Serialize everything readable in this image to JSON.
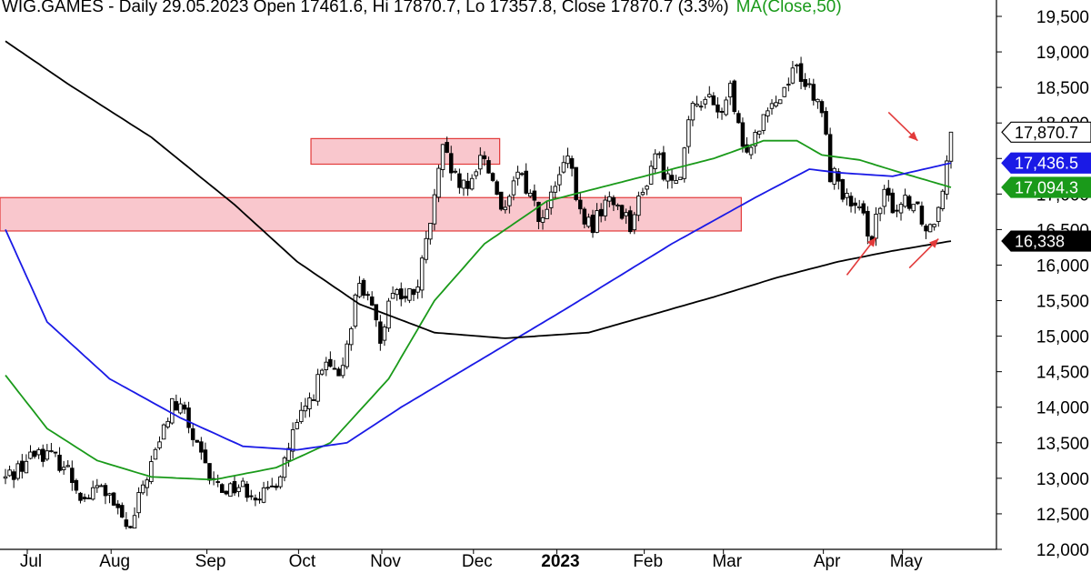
{
  "chart_data": {
    "type": "candlestick",
    "symbol": "WIG.GAMES",
    "header": {
      "symbol_label": "WIG.GAMES",
      "stats_label": " - Daily 29.05.2023 Open 17461.6, Hi 17870.7, Lo 17357.8, Close 17870.7 (3.3%)",
      "ma_label": "MA(Close,50)",
      "date": "29.05.2023",
      "open": 17461.6,
      "high": 17870.7,
      "low": 17357.8,
      "close": 17870.7,
      "change_pct": 3.3
    },
    "y_axis": {
      "range": [
        12000,
        19700
      ],
      "tick_values": [
        12000,
        12500,
        13000,
        13500,
        14000,
        14500,
        15000,
        15500,
        16000,
        16500,
        17000,
        17500,
        18000,
        18500,
        19000,
        19500
      ],
      "tick_labels": [
        "12,000",
        "12,500",
        "13,000",
        "13,500",
        "14,000",
        "14,500",
        "15,000",
        "15,500",
        "16,000",
        "16,500",
        "17,000",
        "17,500",
        "18,000",
        "18,500",
        "19,000",
        "19,500"
      ]
    },
    "x_axis": {
      "months": [
        {
          "label": "Jul",
          "bold": false
        },
        {
          "label": "Aug",
          "bold": false
        },
        {
          "label": "Sep",
          "bold": false
        },
        {
          "label": "Oct",
          "bold": false
        },
        {
          "label": "Nov",
          "bold": false
        },
        {
          "label": "Dec",
          "bold": false
        },
        {
          "label": "2023",
          "bold": true
        },
        {
          "label": "Feb",
          "bold": false
        },
        {
          "label": "Mar",
          "bold": false
        },
        {
          "label": "Apr",
          "bold": false
        },
        {
          "label": "May",
          "bold": false
        }
      ],
      "session_count": 228
    },
    "price_path": [
      [
        0,
        13000
      ],
      [
        8,
        13400
      ],
      [
        14,
        13200
      ],
      [
        19,
        12700
      ],
      [
        23,
        12900
      ],
      [
        27,
        12500
      ],
      [
        30,
        12250
      ],
      [
        33,
        12900
      ],
      [
        37,
        13500
      ],
      [
        40,
        14050
      ],
      [
        43,
        13900
      ],
      [
        46,
        13400
      ],
      [
        49,
        13000
      ],
      [
        52,
        12850
      ],
      [
        56,
        12900
      ],
      [
        60,
        12800
      ],
      [
        63,
        12750
      ],
      [
        66,
        13100
      ],
      [
        69,
        13600
      ],
      [
        73,
        14100
      ],
      [
        77,
        14600
      ],
      [
        80,
        14350
      ],
      [
        85,
        15800
      ],
      [
        90,
        15000
      ],
      [
        93,
        15700
      ],
      [
        96,
        15500
      ],
      [
        99,
        15700
      ],
      [
        102,
        16600
      ],
      [
        105,
        17600
      ],
      [
        108,
        17200
      ],
      [
        111,
        17000
      ],
      [
        114,
        17600
      ],
      [
        117,
        17200
      ],
      [
        120,
        16700
      ],
      [
        123,
        17300
      ],
      [
        126,
        17000
      ],
      [
        129,
        16600
      ],
      [
        132,
        17100
      ],
      [
        135,
        17500
      ],
      [
        138,
        16700
      ],
      [
        141,
        16550
      ],
      [
        144,
        16900
      ],
      [
        147,
        16850
      ],
      [
        150,
        16600
      ],
      [
        153,
        17000
      ],
      [
        156,
        17600
      ],
      [
        159,
        17200
      ],
      [
        162,
        17350
      ],
      [
        165,
        18200
      ],
      [
        168,
        18400
      ],
      [
        171,
        18100
      ],
      [
        174,
        18450
      ],
      [
        177,
        17600
      ],
      [
        180,
        17850
      ],
      [
        183,
        18300
      ],
      [
        186,
        18350
      ],
      [
        189,
        18800
      ],
      [
        191,
        18700
      ],
      [
        194,
        18300
      ],
      [
        196,
        18200
      ],
      [
        198,
        17300
      ],
      [
        200,
        17200
      ],
      [
        202,
        16900
      ],
      [
        205,
        16700
      ],
      [
        208,
        16450
      ],
      [
        211,
        16950
      ],
      [
        214,
        16800
      ],
      [
        216,
        16950
      ],
      [
        219,
        16850
      ],
      [
        221,
        16500
      ],
      [
        223,
        16650
      ],
      [
        225,
        17150
      ],
      [
        227,
        17870
      ]
    ],
    "levels": {
      "last_close": {
        "value": 17870.7,
        "label": "17,870.7",
        "color": "#000000"
      },
      "ma100": {
        "value": 17436.5,
        "label": "17,436.5",
        "color": "#1a1ae6"
      },
      "ma50": {
        "value": 17094.3,
        "label": "17,094.3",
        "color": "#1a9a1a"
      },
      "ma200": {
        "value": 16338,
        "label": "16,338",
        "color": "#000000"
      }
    },
    "moving_averages": [
      {
        "name": "MA(Close,50)",
        "color": "#1a9a1a",
        "points": [
          [
            0,
            14450
          ],
          [
            10,
            13700
          ],
          [
            22,
            13250
          ],
          [
            35,
            13020
          ],
          [
            50,
            12980
          ],
          [
            65,
            13150
          ],
          [
            78,
            13500
          ],
          [
            92,
            14400
          ],
          [
            103,
            15500
          ],
          [
            115,
            16300
          ],
          [
            130,
            16900
          ],
          [
            150,
            17200
          ],
          [
            170,
            17500
          ],
          [
            182,
            17750
          ],
          [
            190,
            17750
          ],
          [
            196,
            17550
          ],
          [
            205,
            17480
          ],
          [
            215,
            17300
          ],
          [
            227,
            17094
          ]
        ]
      },
      {
        "name": "MA100",
        "color": "#1a1ae6",
        "points": [
          [
            0,
            16500
          ],
          [
            10,
            15200
          ],
          [
            25,
            14400
          ],
          [
            42,
            13850
          ],
          [
            57,
            13450
          ],
          [
            70,
            13400
          ],
          [
            82,
            13500
          ],
          [
            95,
            14000
          ],
          [
            115,
            14700
          ],
          [
            135,
            15400
          ],
          [
            160,
            16300
          ],
          [
            180,
            16950
          ],
          [
            193,
            17350
          ],
          [
            200,
            17300
          ],
          [
            213,
            17250
          ],
          [
            227,
            17436
          ]
        ]
      },
      {
        "name": "MA200",
        "color": "#000000",
        "points": [
          [
            0,
            19150
          ],
          [
            15,
            18550
          ],
          [
            35,
            17800
          ],
          [
            55,
            16850
          ],
          [
            70,
            16050
          ],
          [
            85,
            15450
          ],
          [
            103,
            15050
          ],
          [
            120,
            14970
          ],
          [
            140,
            15050
          ],
          [
            155,
            15300
          ],
          [
            170,
            15550
          ],
          [
            185,
            15820
          ],
          [
            200,
            16050
          ],
          [
            213,
            16200
          ],
          [
            227,
            16338
          ]
        ]
      }
    ],
    "zones": [
      {
        "name": "upper-resistance-zone",
        "from_session": 74,
        "to_session": 118,
        "y_low": 17420,
        "y_high": 17780,
        "fill": "#f9c7cd",
        "stroke": "#e23a3a"
      },
      {
        "name": "support-zone",
        "from_session": 0,
        "to_session": 176,
        "y_low": 16480,
        "y_high": 16950,
        "fill": "#f9c7cd",
        "stroke": "#e23a3a"
      }
    ],
    "arrows": [
      {
        "name": "arrow-breakout",
        "from": [
          212,
          18150
        ],
        "to": [
          219,
          17750
        ],
        "color": "#e23a3a"
      },
      {
        "name": "arrow-bottom-1",
        "from": [
          202,
          15860
        ],
        "to": [
          209,
          16390
        ],
        "color": "#e23a3a"
      },
      {
        "name": "arrow-bottom-2",
        "from": [
          217,
          15960
        ],
        "to": [
          224,
          16370
        ],
        "color": "#e23a3a"
      }
    ]
  }
}
